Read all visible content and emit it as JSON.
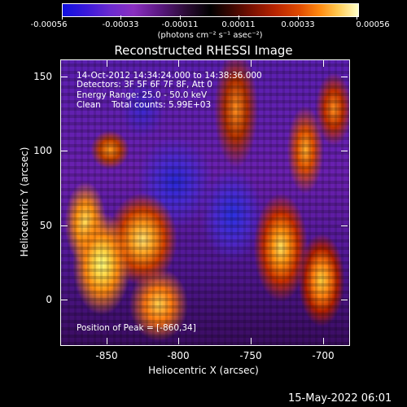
{
  "colorbar": {
    "tick_labels": [
      "-0.00056",
      "-0.00033",
      "-0.00011",
      "0.00011",
      "0.00033",
      "0.00056"
    ],
    "units": "(photons cm⁻² s⁻¹ asec⁻²)"
  },
  "title": "Reconstructed RHESSI Image",
  "info": {
    "time_range": "14-Oct-2012 14:34:24.000 to 14:38:36.000",
    "detectors": "Detectors: 3F 5F 6F 7F 8F, Att 0",
    "energy": "Energy Range: 25.0 - 50.0 keV",
    "method": "Clean    Total counts: 5.99E+03",
    "peak": "Position of Peak = [-860,34]"
  },
  "axes": {
    "x_title": "Heliocentric X (arcsec)",
    "y_title": "Heliocentric Y (arcsec)",
    "x_tick_labels": [
      "-850",
      "-800",
      "-750",
      "-700"
    ],
    "y_tick_labels": [
      "150",
      "100",
      "50",
      "0"
    ]
  },
  "footer": {
    "timestamp": "15-May-2022 06:01"
  },
  "colors": {
    "background": "#000000",
    "text": "#ffffff"
  }
}
